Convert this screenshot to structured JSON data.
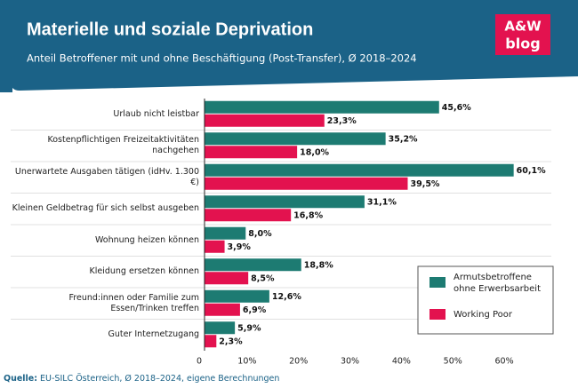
{
  "chart_data": {
    "type": "hbar",
    "title": "Materielle und soziale Deprivation",
    "subtitle": "Anteil Betroffener mit und ohne Beschäftigung (Post-Transfer), Ø 2018–2024",
    "categories": [
      "Urlaub nicht leistbar",
      "Kostenpflichtigen Freizeitaktivitäten nachgehen",
      "Unerwartete Ausgaben tätigen (idHv. 1.300 €)",
      "Kleinen Geldbetrag für sich selbst ausgeben",
      "Wohnung heizen können",
      "Kleidung ersetzen können",
      "Freund:innen oder Familie zum Essen/Trinken treffen",
      "Guter Internetzugang"
    ],
    "series": [
      {
        "name": "Armutsbetroffene ohne Erwerbsarbeit",
        "color": "#1d7b72",
        "values": [
          45.6,
          35.2,
          60.1,
          31.1,
          8.0,
          18.8,
          12.6,
          5.9
        ],
        "value_labels": [
          "45,6%",
          "35,2%",
          "60,1%",
          "31,1%",
          "8,0%",
          "18,8%",
          "12,6%",
          "5,9%"
        ]
      },
      {
        "name": "Working Poor",
        "color": "#e3124f",
        "values": [
          23.3,
          18.0,
          39.5,
          16.8,
          3.9,
          8.5,
          6.9,
          2.3
        ],
        "value_labels": [
          "23,3%",
          "18,0%",
          "39,5%",
          "16,8%",
          "3,9%",
          "8,5%",
          "6,9%",
          "2,3%"
        ]
      }
    ],
    "xlim": [
      0,
      65
    ],
    "xticks": [
      0,
      {
        "value": 10,
        "label": "10%"
      },
      {
        "value": 20,
        "label": "20%"
      },
      {
        "value": 30,
        "label": "30%"
      },
      {
        "value": 40,
        "label": "40%"
      },
      {
        "value": 50,
        "label": "50%"
      },
      {
        "value": 60,
        "label": "60%"
      }
    ],
    "legend": "lower right"
  },
  "logo": {
    "top": "A&W",
    "bottom": "blog"
  },
  "source": {
    "label": "Quelle:",
    "text": "EU-SILC Österreich, Ø 2018–2024, eigene Berechnungen"
  }
}
